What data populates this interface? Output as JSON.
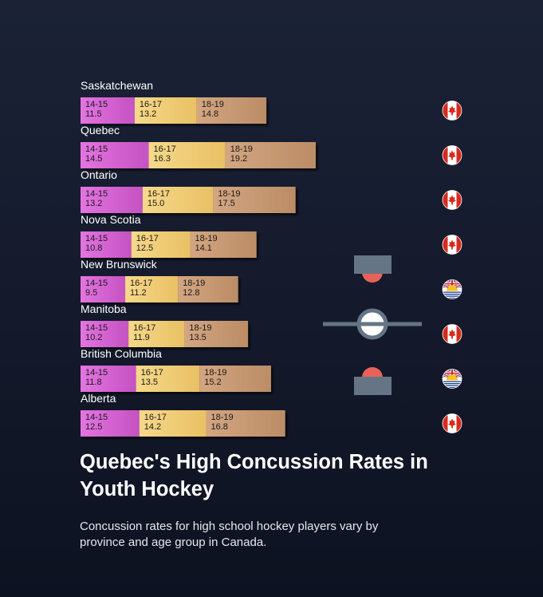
{
  "chart_data": {
    "type": "bar",
    "stacked": true,
    "orientation": "horizontal",
    "title": "Quebec's High Concussion Rates in Youth Hockey",
    "subtitle": "Concussion rates for high school hockey players vary by province and age group in Canada.",
    "categories": [
      "Saskatchewan",
      "Quebec",
      "Ontario",
      "Nova Scotia",
      "New Brunswick",
      "Manitoba",
      "British Columbia",
      "Alberta"
    ],
    "series": [
      {
        "name": "14-15",
        "color": "#d660d2",
        "values": [
          11.5,
          14.5,
          13.2,
          10.8,
          9.5,
          10.2,
          11.8,
          12.5
        ]
      },
      {
        "name": "16-17",
        "color": "#f2cc72",
        "values": [
          13.2,
          16.3,
          15.0,
          12.5,
          11.2,
          11.9,
          13.5,
          14.2
        ]
      },
      {
        "name": "18-19",
        "color": "#c99a72",
        "values": [
          14.8,
          19.2,
          17.5,
          14.1,
          12.8,
          13.5,
          15.2,
          16.8
        ]
      }
    ],
    "flags": [
      "canada-flag-icon",
      "canada-flag-icon",
      "canada-flag-icon",
      "canada-flag-icon",
      "british-columbia-flag-icon",
      "canada-flag-icon",
      "british-columbia-flag-icon",
      "canada-flag-icon"
    ],
    "grid": false,
    "legend": "none"
  }
}
